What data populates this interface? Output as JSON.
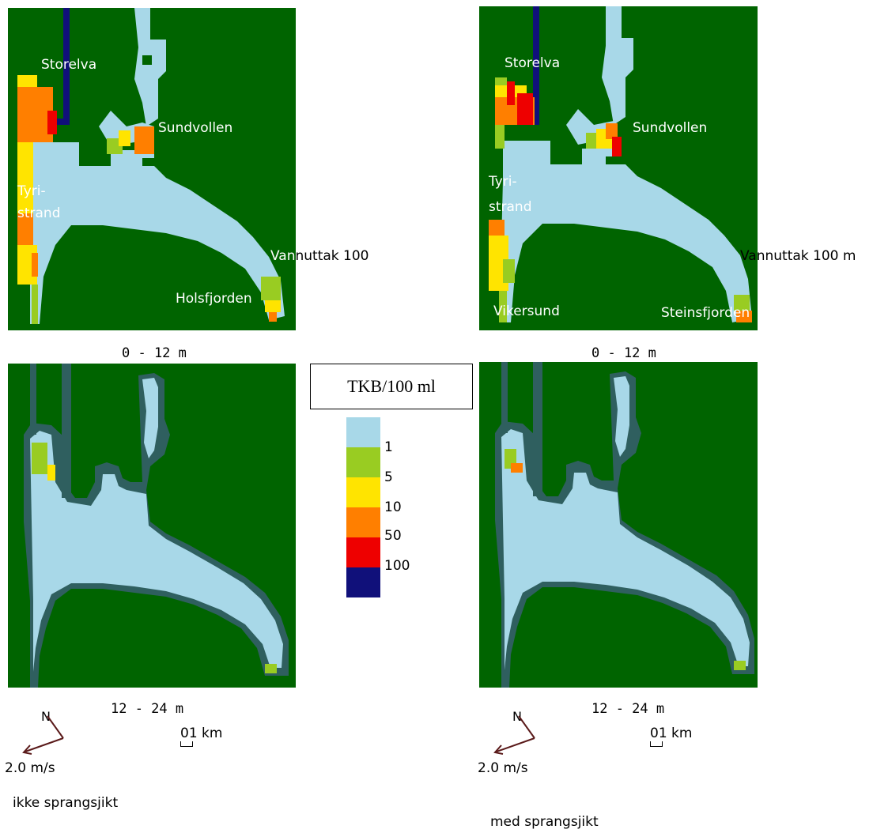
{
  "legend": {
    "title": "TKB/100 ml",
    "entries": [
      {
        "label": "1",
        "color": "#a8d8e8"
      },
      {
        "label": "5",
        "color": "#99cc22"
      },
      {
        "label": "10",
        "color": "#ffe400"
      },
      {
        "label": "50",
        "color": "#ff7f00"
      },
      {
        "label": "100",
        "color": "#ee0000"
      },
      {
        "label": "",
        "color": "#10107a"
      }
    ]
  },
  "colors": {
    "land": "#006400",
    "water": "#a8d8e8",
    "shore": "#2f5f5f",
    "river": "#10107a"
  },
  "panels": {
    "top_left": {
      "labels": [
        "Storelva",
        "Sundvollen",
        "Tyri-",
        "strand",
        "Vannuttak 100",
        "Holsfjorden"
      ],
      "depth": "0 - 12 m"
    },
    "top_right": {
      "labels": [
        "Storelva",
        "Sundvollen",
        "Tyri-",
        "strand",
        "Vannuttak 100 m",
        "Vikersund",
        "Steinsfjorden"
      ],
      "depth": "0 - 12 m"
    },
    "bottom_left": {
      "depth": "12 - 24 m"
    },
    "bottom_right": {
      "depth": "12 - 24 m"
    }
  },
  "scale": {
    "left": "01 km",
    "right": "01 km"
  },
  "north": "N",
  "velocity": {
    "left": "2.0 m/s",
    "right": "2.0 m/s"
  },
  "notes": {
    "left": "ikke sprangsjikt",
    "right": "med sprangsjikt"
  }
}
